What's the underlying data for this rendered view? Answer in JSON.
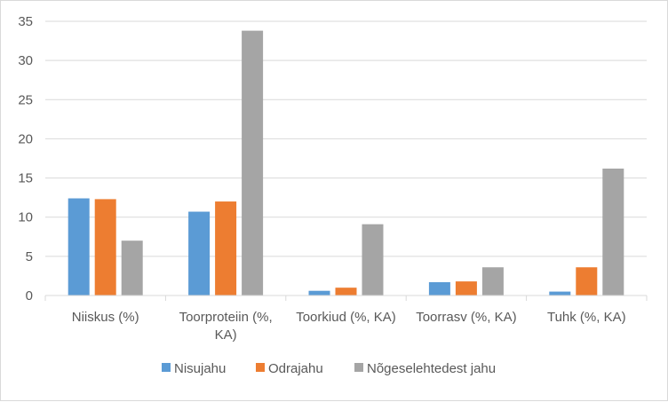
{
  "chart_data": {
    "type": "bar",
    "title": "",
    "xlabel": "",
    "ylabel": "",
    "ylim": [
      0,
      35
    ],
    "yticks": [
      0,
      5,
      10,
      15,
      20,
      25,
      30,
      35
    ],
    "grid": "horizontal",
    "legend_position": "bottom",
    "categories": [
      [
        "Niiskus (%)"
      ],
      [
        "Toorproteiin (%,",
        "KA)"
      ],
      [
        "Toorkiud (%, KA)"
      ],
      [
        "Toorrasv (%, KA)"
      ],
      [
        "Tuhk (%, KA)"
      ]
    ],
    "series": [
      {
        "name": "Nisujahu",
        "color": "#5b9bd5",
        "values": [
          12.4,
          10.7,
          0.6,
          1.7,
          0.5
        ]
      },
      {
        "name": "Odrajahu",
        "color": "#ed7d31",
        "values": [
          12.3,
          12.0,
          1.0,
          1.8,
          3.6
        ]
      },
      {
        "name": "Nõgeselehtedest jahu",
        "color": "#a5a5a5",
        "values": [
          7.0,
          33.8,
          9.1,
          3.6,
          16.2
        ]
      }
    ]
  }
}
